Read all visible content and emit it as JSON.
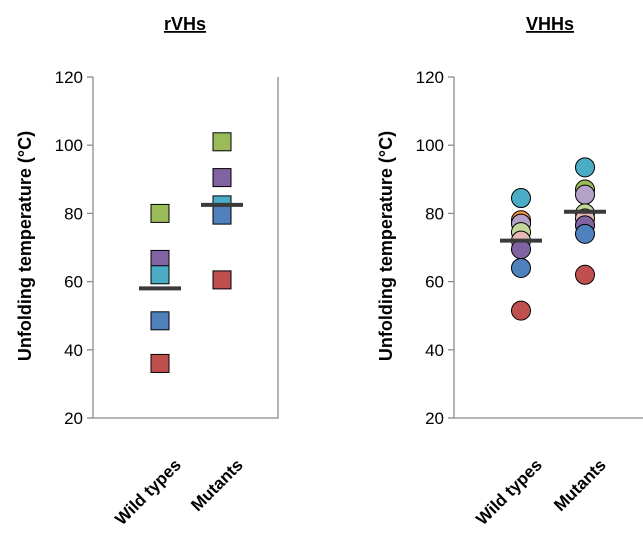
{
  "chart_data": [
    {
      "type": "scatter",
      "title": "rVHs",
      "ylabel": "Unfolding temperature (°C)",
      "ylim": [
        20,
        120
      ],
      "yticks": [
        20,
        40,
        60,
        80,
        100,
        120
      ],
      "categories": [
        "Wild types",
        "Mutants"
      ],
      "marker": "square",
      "points": [
        {
          "category": "Wild types",
          "y": 80,
          "color": "#9bbb59"
        },
        {
          "category": "Wild types",
          "y": 66.5,
          "color": "#8064a2"
        },
        {
          "category": "Wild types",
          "y": 62,
          "color": "#4bacc6"
        },
        {
          "category": "Wild types",
          "y": 48.5,
          "color": "#4f81bd"
        },
        {
          "category": "Wild types",
          "y": 36,
          "color": "#c0504d"
        },
        {
          "category": "Mutants",
          "y": 101,
          "color": "#9bbb59"
        },
        {
          "category": "Mutants",
          "y": 90.5,
          "color": "#8064a2"
        },
        {
          "category": "Mutants",
          "y": 82.5,
          "color": "#4bacc6"
        },
        {
          "category": "Mutants",
          "y": 79.5,
          "color": "#4f81bd"
        },
        {
          "category": "Mutants",
          "y": 60.5,
          "color": "#c0504d"
        }
      ],
      "means": [
        {
          "category": "Wild types",
          "y": 58
        },
        {
          "category": "Mutants",
          "y": 82.5
        }
      ]
    },
    {
      "type": "scatter",
      "title": "VHHs",
      "ylabel": "Unfolding temperature  (°C)",
      "ylim": [
        20,
        120
      ],
      "yticks": [
        20,
        40,
        60,
        80,
        100,
        120
      ],
      "categories": [
        "Wild types",
        "Mutants"
      ],
      "marker": "circle",
      "points": [
        {
          "category": "Wild types",
          "y": 84.5,
          "color": "#4bacc6"
        },
        {
          "category": "Wild types",
          "y": 78,
          "color": "#f79646"
        },
        {
          "category": "Wild types",
          "y": 77,
          "color": "#b3a2c7"
        },
        {
          "category": "Wild types",
          "y": 74.5,
          "color": "#c3d69b"
        },
        {
          "category": "Wild types",
          "y": 72,
          "color": "#e6b9b8"
        },
        {
          "category": "Wild types",
          "y": 69.5,
          "color": "#8064a2"
        },
        {
          "category": "Wild types",
          "y": 64,
          "color": "#4f81bd"
        },
        {
          "category": "Wild types",
          "y": 51.5,
          "color": "#c0504d"
        },
        {
          "category": "Mutants",
          "y": 93.5,
          "color": "#4bacc6"
        },
        {
          "category": "Mutants",
          "y": 87,
          "color": "#9bbb59"
        },
        {
          "category": "Mutants",
          "y": 85.5,
          "color": "#b3a2c7"
        },
        {
          "category": "Mutants",
          "y": 80,
          "color": "#c3d69b"
        },
        {
          "category": "Mutants",
          "y": 78.5,
          "color": "#e6b9b8"
        },
        {
          "category": "Mutants",
          "y": 76.5,
          "color": "#8064a2"
        },
        {
          "category": "Mutants",
          "y": 74,
          "color": "#4f81bd"
        },
        {
          "category": "Mutants",
          "y": 62,
          "color": "#c0504d"
        }
      ],
      "means": [
        {
          "category": "Wild types",
          "y": 72
        },
        {
          "category": "Mutants",
          "y": 80.5
        }
      ]
    }
  ]
}
